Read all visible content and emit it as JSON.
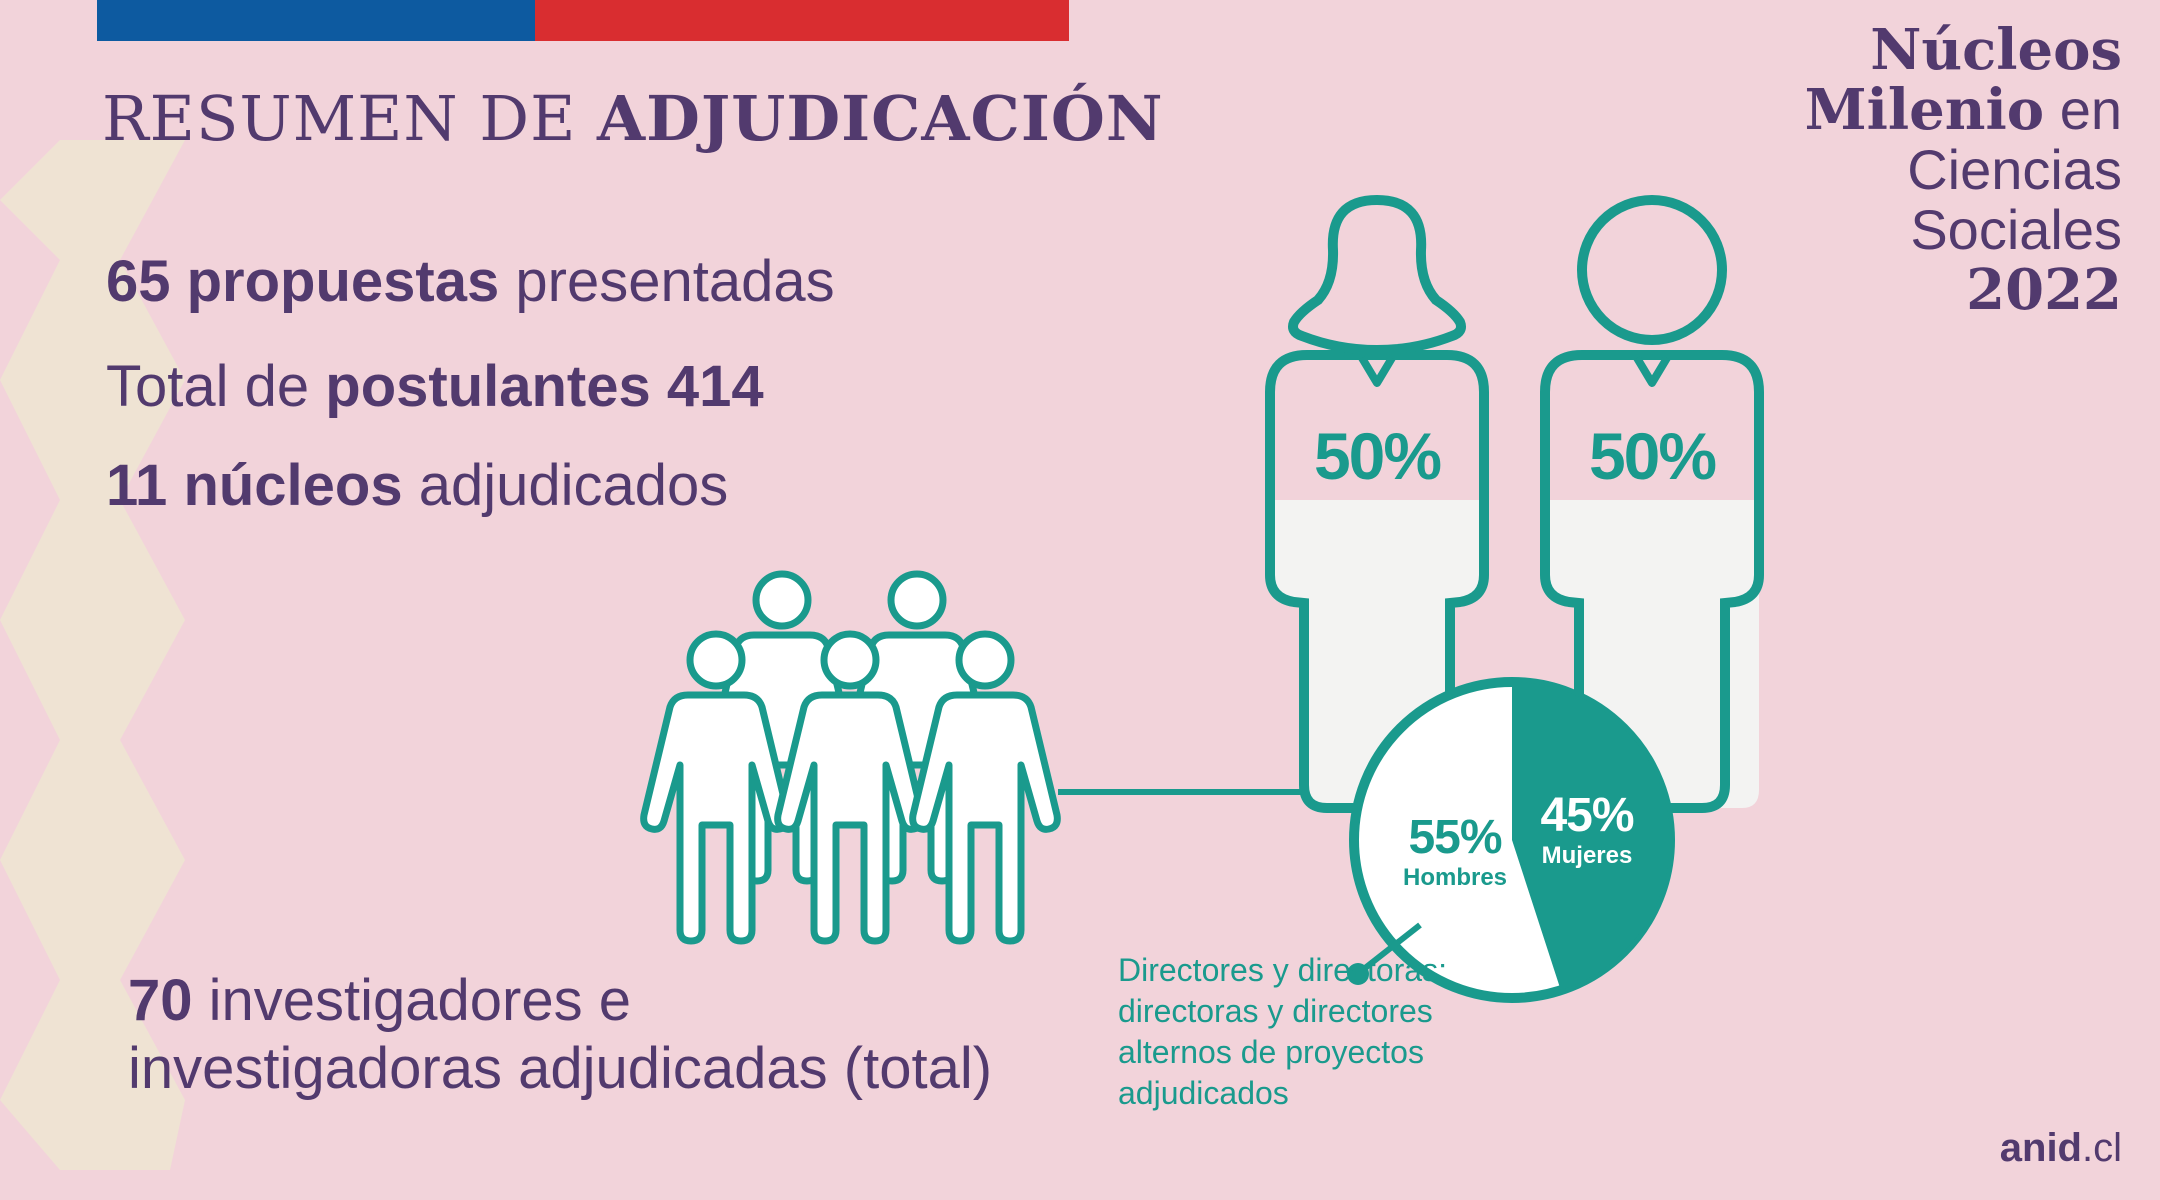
{
  "header": {
    "title_light": "RESUMEN DE ",
    "title_bold": "ADJUDICACIÓN"
  },
  "brand": {
    "line1": "Núcleos",
    "line2_bold": "Milenio",
    "line2_light": " en",
    "line3": "Ciencias",
    "line4": "Sociales",
    "year": "2022"
  },
  "stats": {
    "proposals_number": "65",
    "proposals_bold": " propuestas",
    "proposals_light": " presentadas",
    "applicants_light": "Total de ",
    "applicants_bold": "postulantes",
    "applicants_number": " 414",
    "nuclei_number": "11",
    "nuclei_bold": " núcleos",
    "nuclei_light": " adjudicados"
  },
  "researchers": {
    "number": "70",
    "line1_rest": " investigadores e",
    "line2": "investigadoras adjudicadas (total)"
  },
  "gender_figures": {
    "women_percent": "50%",
    "men_percent": "50%",
    "women_fill": 0.5,
    "men_fill": 0.5
  },
  "pie": {
    "men_percent": "55%",
    "men_label": "Hombres",
    "women_percent": "45%",
    "women_label": "Mujeres",
    "women_share": 0.45
  },
  "caption": "Directores y directoras; directoras y directores alternos de proyectos adjudicados",
  "footer": {
    "bold": "anid",
    "light": ".cl"
  },
  "colors": {
    "background": "#f2d3da",
    "purple": "#523a6e",
    "teal": "#1a9a8d",
    "flag_blue": "#0d5aa0",
    "flag_red": "#d92d30",
    "zigzag": "#efe3d3",
    "figure_fill": "#f3f3f2"
  }
}
